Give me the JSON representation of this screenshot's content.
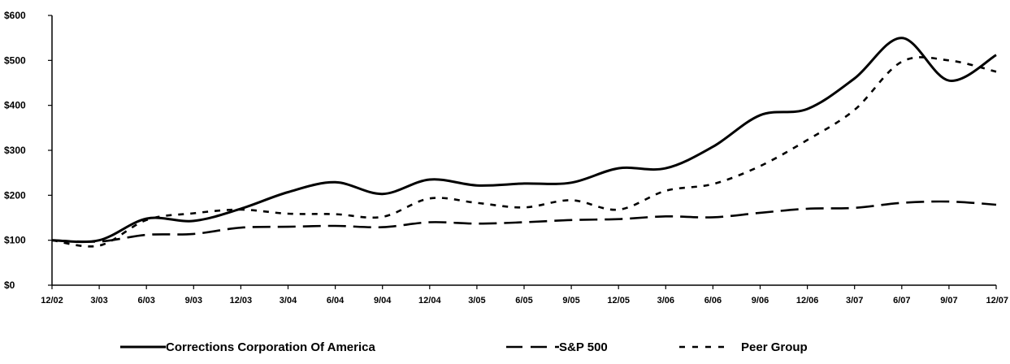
{
  "chart_data": {
    "type": "line",
    "title": "",
    "xlabel": "",
    "ylabel": "",
    "categories": [
      "12/02",
      "3/03",
      "6/03",
      "9/03",
      "12/03",
      "3/04",
      "6/04",
      "9/04",
      "12/04",
      "3/05",
      "6/05",
      "9/05",
      "12/05",
      "3/06",
      "6/06",
      "9/06",
      "12/06",
      "3/07",
      "6/07",
      "9/07",
      "12/07"
    ],
    "y_ticks": [
      "$0",
      "$100",
      "$200",
      "$300",
      "$400",
      "$500",
      "$600"
    ],
    "ylim": [
      0,
      600
    ],
    "grid": false,
    "legend_position": "bottom",
    "series": [
      {
        "name": "Corrections Corporation Of America",
        "style": "solid",
        "color": "#000000",
        "values": [
          100,
          100,
          148,
          143,
          170,
          207,
          229,
          203,
          235,
          222,
          226,
          228,
          260,
          260,
          308,
          378,
          392,
          460,
          550,
          455,
          512
        ]
      },
      {
        "name": "S&P 500",
        "style": "long-dash",
        "color": "#000000",
        "values": [
          100,
          97,
          112,
          114,
          128,
          130,
          132,
          129,
          140,
          137,
          140,
          145,
          147,
          153,
          151,
          161,
          170,
          172,
          183,
          186,
          179
        ]
      },
      {
        "name": "Peer Group",
        "style": "short-dash",
        "color": "#000000",
        "values": [
          100,
          88,
          145,
          160,
          168,
          159,
          158,
          152,
          193,
          183,
          173,
          189,
          168,
          210,
          225,
          265,
          323,
          390,
          497,
          500,
          475
        ]
      }
    ]
  }
}
